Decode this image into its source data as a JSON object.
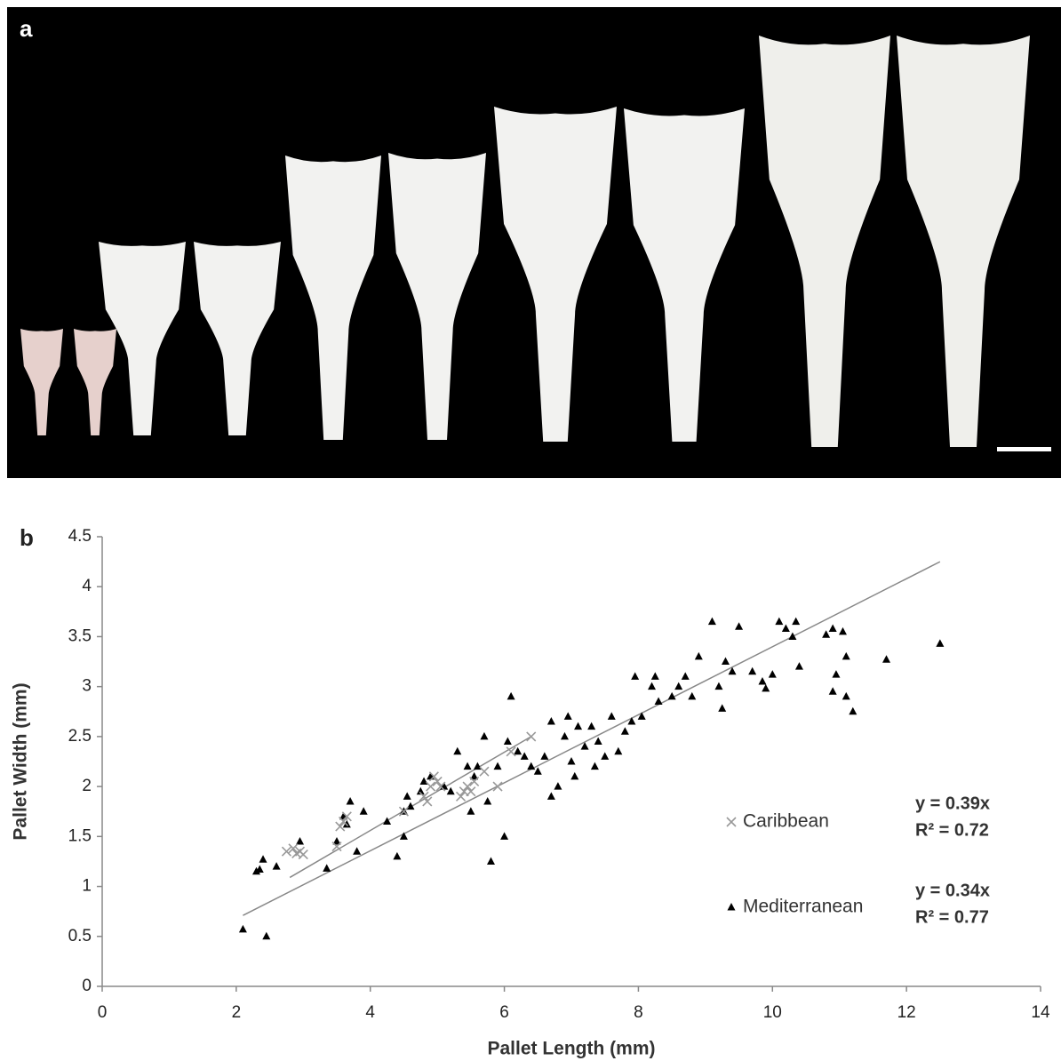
{
  "panel_a": {
    "label": "a"
  },
  "chart_data": {
    "type": "scatter",
    "panel_label": "b",
    "x_label": "Pallet Length (mm)",
    "y_label": "Pallet Width (mm)",
    "xlim": [
      0,
      14
    ],
    "xticks": [
      0,
      2,
      4,
      6,
      8,
      10,
      12,
      14
    ],
    "ylim": [
      0,
      4.5
    ],
    "yticks": [
      0,
      0.5,
      1,
      1.5,
      2,
      2.5,
      3,
      3.5,
      4,
      4.5
    ],
    "series": [
      {
        "name": "Caribbean",
        "color": "#999999",
        "marker": "x",
        "equation": "y = 0.39x",
        "r2": "R² = 0.72",
        "trendline": {
          "x": [
            2.8,
            6.4
          ],
          "y": [
            1.09,
            2.5
          ]
        },
        "x": [
          2.75,
          2.85,
          2.9,
          2.95,
          3.0,
          3.5,
          3.55,
          3.6,
          3.65,
          4.5,
          4.8,
          4.85,
          4.9,
          4.95,
          5.0,
          5.05,
          5.35,
          5.4,
          5.45,
          5.5,
          5.55,
          5.7,
          5.9,
          6.1,
          6.4
        ],
        "y": [
          1.35,
          1.38,
          1.33,
          1.35,
          1.32,
          1.4,
          1.6,
          1.65,
          1.7,
          1.75,
          1.9,
          1.85,
          2.0,
          2.1,
          2.05,
          2.0,
          1.9,
          1.95,
          2.0,
          1.95,
          2.05,
          2.15,
          2.0,
          2.35,
          2.5
        ]
      },
      {
        "name": "Mediterranean",
        "color": "#000000",
        "marker": "triangle",
        "equation": "y = 0.34x",
        "r2": "R² = 0.77",
        "trendline": {
          "x": [
            2.1,
            12.5
          ],
          "y": [
            0.71,
            4.25
          ]
        },
        "x": [
          2.1,
          2.45,
          2.3,
          2.35,
          2.4,
          2.6,
          2.95,
          3.35,
          3.5,
          3.6,
          3.65,
          3.7,
          3.9,
          3.8,
          4.25,
          4.4,
          4.5,
          4.5,
          4.55,
          4.6,
          4.75,
          4.8,
          4.9,
          5.1,
          5.2,
          5.3,
          5.45,
          5.5,
          5.55,
          5.6,
          5.7,
          5.75,
          5.8,
          5.9,
          6.0,
          6.05,
          6.1,
          6.2,
          6.3,
          6.4,
          6.5,
          6.6,
          6.7,
          6.7,
          6.8,
          6.9,
          6.95,
          7.0,
          7.05,
          7.1,
          7.2,
          7.3,
          7.35,
          7.4,
          7.5,
          7.6,
          7.7,
          7.8,
          7.9,
          7.95,
          8.05,
          8.2,
          8.25,
          8.3,
          8.5,
          8.6,
          8.7,
          8.8,
          8.9,
          9.1,
          9.2,
          9.25,
          9.3,
          9.4,
          9.5,
          9.7,
          9.85,
          9.9,
          10.0,
          10.1,
          10.2,
          10.3,
          10.35,
          10.4,
          10.8,
          10.9,
          10.9,
          10.95,
          11.05,
          11.1,
          11.1,
          11.2,
          11.7,
          12.5
        ],
        "y": [
          0.57,
          0.5,
          1.15,
          1.17,
          1.27,
          1.2,
          1.45,
          1.18,
          1.45,
          1.7,
          1.62,
          1.85,
          1.75,
          1.35,
          1.65,
          1.3,
          1.5,
          1.75,
          1.9,
          1.8,
          1.95,
          2.05,
          2.1,
          2.0,
          1.95,
          2.35,
          2.2,
          1.75,
          2.1,
          2.2,
          2.5,
          1.85,
          1.25,
          2.2,
          1.5,
          2.45,
          2.9,
          2.35,
          2.3,
          2.2,
          2.15,
          2.3,
          1.9,
          2.65,
          2.0,
          2.5,
          2.7,
          2.25,
          2.1,
          2.6,
          2.4,
          2.6,
          2.2,
          2.45,
          2.3,
          2.7,
          2.35,
          2.55,
          2.65,
          3.1,
          2.7,
          3.0,
          3.1,
          2.85,
          2.9,
          3.0,
          3.1,
          2.9,
          3.3,
          3.65,
          3.0,
          2.78,
          3.25,
          3.15,
          3.6,
          3.15,
          3.05,
          2.98,
          3.12,
          3.65,
          3.58,
          3.5,
          3.65,
          3.2,
          3.52,
          3.58,
          2.95,
          3.12,
          3.55,
          3.3,
          2.9,
          2.75,
          3.27,
          3.43
        ]
      }
    ]
  }
}
